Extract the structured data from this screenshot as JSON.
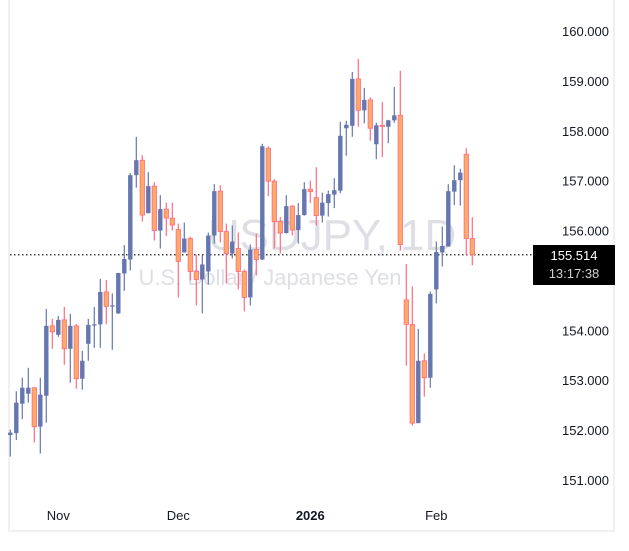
{
  "chart_data": {
    "type": "candlestick",
    "watermark": {
      "symbol": "USDJPY, 1D",
      "description": "U.S. Dollar / Japanese Yen"
    },
    "ylim": [
      150.8,
      160.4
    ],
    "y_ticks": [
      "160.000",
      "159.000",
      "158.000",
      "157.000",
      "156.000",
      "154.000",
      "153.000",
      "152.000",
      "151.000"
    ],
    "y_tick_values": [
      160,
      159,
      158,
      157,
      156,
      154,
      153,
      152,
      151
    ],
    "x_ticks": [
      {
        "label": "Nov",
        "index": 8,
        "bold": false
      },
      {
        "label": "Dec",
        "index": 28,
        "bold": false
      },
      {
        "label": "2026",
        "index": 50,
        "bold": true
      },
      {
        "label": "Feb",
        "index": 71,
        "bold": false
      }
    ],
    "colors": {
      "up": "#6577ae",
      "down_body": "#ffa96b",
      "down_border": "#ff6b80",
      "price_label_bg": "#000000"
    },
    "last_price": {
      "value": "155.514",
      "countdown": "13:17:38",
      "numeric": 155.514
    },
    "ohlc": [
      [
        151.9,
        152.01,
        151.47,
        151.95
      ],
      [
        151.94,
        152.78,
        151.8,
        152.55
      ],
      [
        152.53,
        153.05,
        152.22,
        152.85
      ],
      [
        152.73,
        153.25,
        152.55,
        152.85
      ],
      [
        152.85,
        152.85,
        151.75,
        152.07
      ],
      [
        152.07,
        153.05,
        151.53,
        152.71
      ],
      [
        152.69,
        154.43,
        152.15,
        154.09
      ],
      [
        154.09,
        154.23,
        153.63,
        153.97
      ],
      [
        153.91,
        154.29,
        153.87,
        154.21
      ],
      [
        154.21,
        154.47,
        153.31,
        153.63
      ],
      [
        153.63,
        154.33,
        152.95,
        154.09
      ],
      [
        154.09,
        154.13,
        152.83,
        153.03
      ],
      [
        153.03,
        153.59,
        152.81,
        153.39
      ],
      [
        153.73,
        154.23,
        153.39,
        154.11
      ],
      [
        154.1,
        154.47,
        153.65,
        154.12
      ],
      [
        154.12,
        155.03,
        153.65,
        154.77
      ],
      [
        154.77,
        155.01,
        154.12,
        154.48
      ],
      [
        154.49,
        154.74,
        153.61,
        154.5
      ],
      [
        154.34,
        155.15,
        154.33,
        155.15
      ],
      [
        155.14,
        155.71,
        154.79,
        155.43
      ],
      [
        155.42,
        157.15,
        155.2,
        157.11
      ],
      [
        157.11,
        157.88,
        156.86,
        157.41
      ],
      [
        157.41,
        157.51,
        156.18,
        156.31
      ],
      [
        156.35,
        157.17,
        156.34,
        156.89
      ],
      [
        156.89,
        156.97,
        155.8,
        156.0
      ],
      [
        156.0,
        156.71,
        155.64,
        156.43
      ],
      [
        156.43,
        156.56,
        155.89,
        156.25
      ],
      [
        156.25,
        156.56,
        156.0,
        156.11
      ],
      [
        156.02,
        156.14,
        154.66,
        155.38
      ],
      [
        155.56,
        156.16,
        155.56,
        155.84
      ],
      [
        155.84,
        155.88,
        155.0,
        155.18
      ],
      [
        155.18,
        155.52,
        154.5,
        155.02
      ],
      [
        155.02,
        155.5,
        154.34,
        155.32
      ],
      [
        155.18,
        155.96,
        154.92,
        155.9
      ],
      [
        155.9,
        156.93,
        155.74,
        156.79
      ],
      [
        156.79,
        156.91,
        155.76,
        155.98
      ],
      [
        155.98,
        156.14,
        154.94,
        155.54
      ],
      [
        155.54,
        156.1,
        155.44,
        155.78
      ],
      [
        155.64,
        155.96,
        154.82,
        155.18
      ],
      [
        155.18,
        155.22,
        154.38,
        154.66
      ],
      [
        154.66,
        155.72,
        154.5,
        155.62
      ],
      [
        155.62,
        155.94,
        155.1,
        155.42
      ],
      [
        155.42,
        157.74,
        155.41,
        157.69
      ],
      [
        157.65,
        157.69,
        156.69,
        156.99
      ],
      [
        156.99,
        157.03,
        155.64,
        156.18
      ],
      [
        156.18,
        156.27,
        155.54,
        155.95
      ],
      [
        155.95,
        156.71,
        155.94,
        156.49
      ],
      [
        156.49,
        156.51,
        155.9,
        156.01
      ],
      [
        156.01,
        156.55,
        155.74,
        156.31
      ],
      [
        156.31,
        156.97,
        156.3,
        156.83
      ],
      [
        156.83,
        157.0,
        156.55,
        156.78
      ],
      [
        156.66,
        157.27,
        156.1,
        156.3
      ],
      [
        156.3,
        156.76,
        156.16,
        156.56
      ],
      [
        156.55,
        156.8,
        156.28,
        156.73
      ],
      [
        156.72,
        157.05,
        156.45,
        156.81
      ],
      [
        156.8,
        158.18,
        156.75,
        157.9
      ],
      [
        158.05,
        158.2,
        157.5,
        158.12
      ],
      [
        158.1,
        159.18,
        157.88,
        159.04
      ],
      [
        159.04,
        159.44,
        158.08,
        158.41
      ],
      [
        158.41,
        158.86,
        158.15,
        158.62
      ],
      [
        158.62,
        158.67,
        157.8,
        158.05
      ],
      [
        157.73,
        158.16,
        157.43,
        158.11
      ],
      [
        158.11,
        158.58,
        157.47,
        158.09
      ],
      [
        158.08,
        158.22,
        157.75,
        158.21
      ],
      [
        158.21,
        158.88,
        158.16,
        158.31
      ],
      [
        158.31,
        159.2,
        155.6,
        155.72
      ],
      [
        154.61,
        155.33,
        153.29,
        154.12
      ],
      [
        154.12,
        154.88,
        152.09,
        152.14
      ],
      [
        152.14,
        154.03,
        152.14,
        153.39
      ],
      [
        153.39,
        153.54,
        152.67,
        153.05
      ],
      [
        153.05,
        154.78,
        152.85,
        154.73
      ],
      [
        154.82,
        155.78,
        154.54,
        155.57
      ],
      [
        155.56,
        156.08,
        155.28,
        155.69
      ],
      [
        155.68,
        156.93,
        155.68,
        156.79
      ],
      [
        156.78,
        157.31,
        156.51,
        157.01
      ],
      [
        157.01,
        157.24,
        156.5,
        157.16
      ],
      [
        157.53,
        157.65,
        155.51,
        155.84
      ],
      [
        155.84,
        156.27,
        155.3,
        155.514
      ]
    ]
  }
}
